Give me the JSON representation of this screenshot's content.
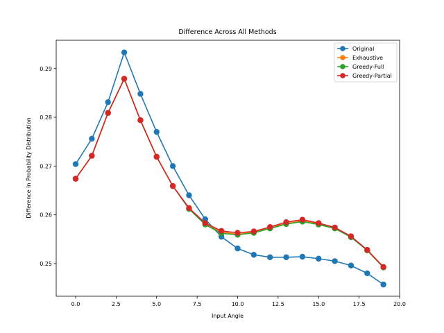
{
  "chart_data": {
    "type": "line",
    "title": "Difference Across All Methods",
    "xlabel": "Input Angle",
    "ylabel": "Difference In Probability Distribution",
    "xlim": [
      -1.2,
      20.0
    ],
    "ylim": [
      0.2433,
      0.2958
    ],
    "xticks": [
      0.0,
      2.5,
      5.0,
      7.5,
      10.0,
      12.5,
      15.0,
      17.5,
      20.0
    ],
    "xtick_labels": [
      "0.0",
      "2.5",
      "5.0",
      "7.5",
      "10.0",
      "12.5",
      "15.0",
      "17.5",
      "20.0"
    ],
    "yticks": [
      0.25,
      0.26,
      0.27,
      0.28,
      0.29
    ],
    "ytick_labels": [
      "0.25",
      "0.26",
      "0.27",
      "0.28",
      "0.29"
    ],
    "grid": false,
    "legend_position": "top-right",
    "x": [
      0,
      1,
      2,
      3,
      4,
      5,
      6,
      7,
      8,
      9,
      10,
      11,
      12,
      13,
      14,
      15,
      16,
      17,
      18,
      19
    ],
    "series": [
      {
        "name": "Original",
        "color": "#1f77b4",
        "values": [
          0.2704,
          0.2756,
          0.2831,
          0.2933,
          0.2848,
          0.277,
          0.27,
          0.264,
          0.2591,
          0.2555,
          0.2531,
          0.2518,
          0.2513,
          0.2513,
          0.2514,
          0.251,
          0.2505,
          0.2496,
          0.248,
          0.2457
        ]
      },
      {
        "name": "Exhaustive",
        "color": "#ff7f0e",
        "values": [
          0.2674,
          0.2721,
          0.2809,
          0.2879,
          0.2794,
          0.2719,
          0.2659,
          0.2613,
          0.2582,
          0.2565,
          0.256,
          0.2565,
          0.2574,
          0.2582,
          0.2588,
          0.2582,
          0.2573,
          0.2555,
          0.2528,
          0.2493
        ]
      },
      {
        "name": "Greedy-Full",
        "color": "#2ca02c",
        "values": [
          0.2674,
          0.2721,
          0.2809,
          0.2879,
          0.2794,
          0.2719,
          0.2659,
          0.2612,
          0.258,
          0.2562,
          0.2559,
          0.2563,
          0.2572,
          0.2581,
          0.2586,
          0.258,
          0.2572,
          0.2554,
          0.2527,
          0.2492
        ]
      },
      {
        "name": "Greedy-Partial",
        "color": "#d62728",
        "values": [
          0.2674,
          0.2721,
          0.2809,
          0.2879,
          0.2794,
          0.2719,
          0.2659,
          0.2614,
          0.2583,
          0.2567,
          0.2563,
          0.2566,
          0.2575,
          0.2585,
          0.259,
          0.2583,
          0.2574,
          0.2556,
          0.2528,
          0.2493
        ]
      }
    ]
  }
}
